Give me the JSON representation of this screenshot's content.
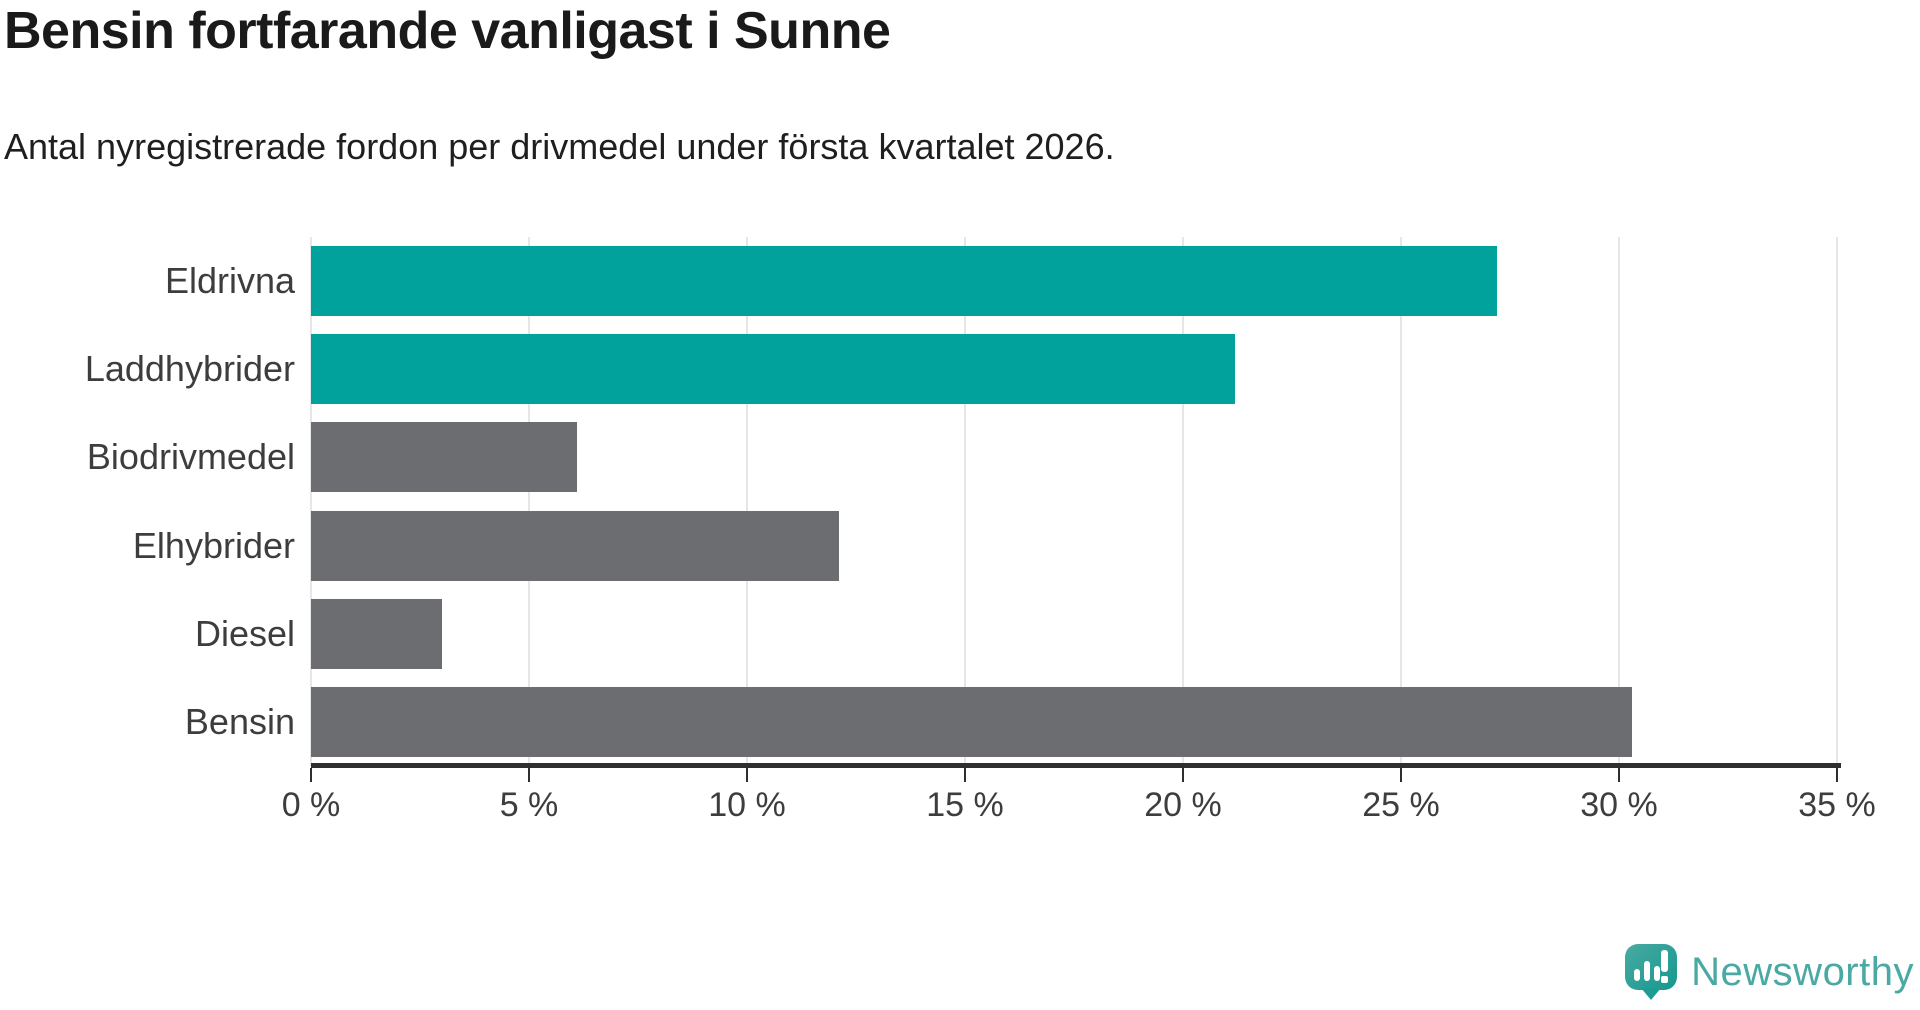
{
  "header": {
    "title": "Bensin fortfarande vanligast i Sunne",
    "subtitle": "Antal nyregistrerade fordon per drivmedel under första kvartalet 2026."
  },
  "chart_data": {
    "type": "bar",
    "orientation": "horizontal",
    "title": "Bensin fortfarande vanligast i Sunne",
    "subtitle": "Antal nyregistrerade fordon per drivmedel under första kvartalet 2026.",
    "categories": [
      "Eldrivna",
      "Laddhybrider",
      "Biodrivmedel",
      "Elhybrider",
      "Diesel",
      "Bensin"
    ],
    "values": [
      27.2,
      21.2,
      6.1,
      12.1,
      3.0,
      30.3
    ],
    "unit": "%",
    "bar_colors": [
      "#00a29b",
      "#00a29b",
      "#6c6d71",
      "#6c6d71",
      "#6c6d71",
      "#6c6d71"
    ],
    "xlabel": "",
    "ylabel": "",
    "xlim": [
      0,
      35
    ],
    "x_ticks": [
      0,
      5,
      10,
      15,
      20,
      25,
      30,
      35
    ],
    "x_tick_labels": [
      "0 %",
      "5 %",
      "10 %",
      "15 %",
      "20 %",
      "25 %",
      "30 %",
      "35 %"
    ],
    "grid": "vertical-only",
    "legend": "none"
  },
  "colors": {
    "accent_teal": "#00a29b",
    "bar_gray": "#6c6d71",
    "axis": "#2f2f2f",
    "gridline": "#e6e6e6",
    "heading_text": "#1a1a1a",
    "label_text": "#3d3d3d",
    "logo_teal": "#4aa9a2"
  },
  "footer": {
    "brand": "Newsworthy",
    "logo_icon": "newsworthy-speech-bubble-barchart-icon"
  }
}
